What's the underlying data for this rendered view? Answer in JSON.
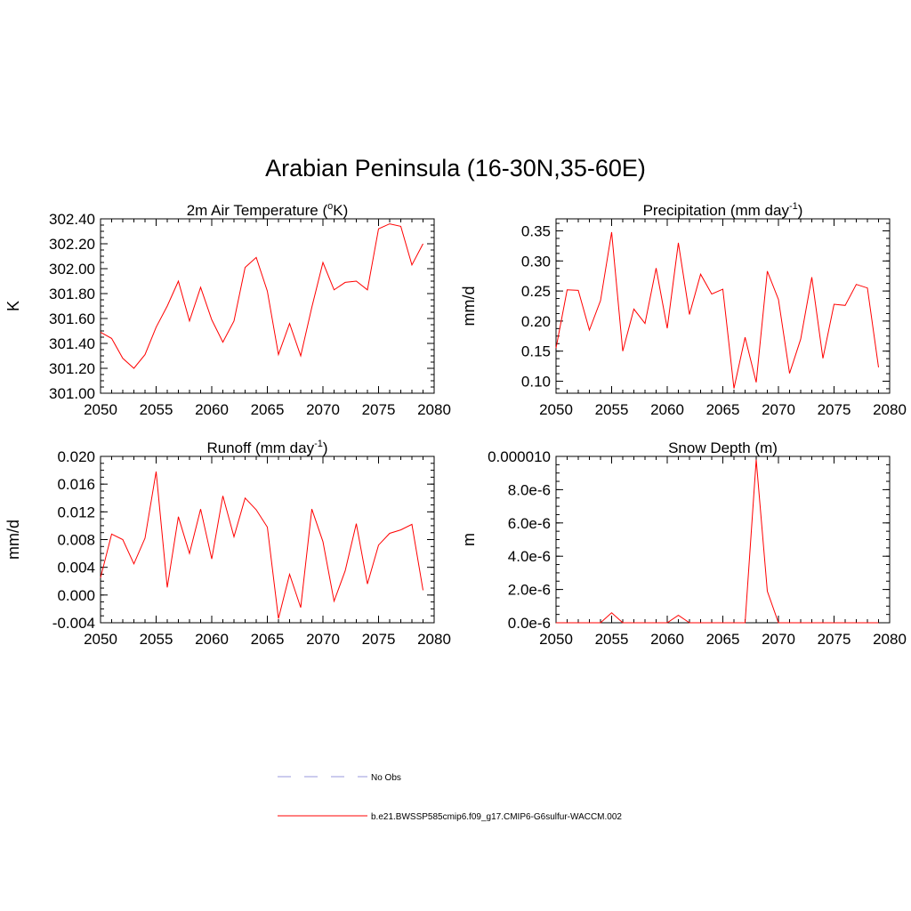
{
  "title": "Arabian Peninsula (16-30N,35-60E)",
  "legend": [
    {
      "label": "No Obs",
      "color": "#9999dd",
      "style": "dashed"
    },
    {
      "label": "b.e21.BWSSP585cmip6.f09_g17.CMIP6-G6sulfur-WACCM.002",
      "color": "#ff0000",
      "style": "solid"
    }
  ],
  "chart_data": [
    {
      "type": "line",
      "title": "2m Air Temperature (oK)",
      "title_parts": {
        "pre": "2m Air Temperature (",
        "sup": "o",
        "post": "K)"
      },
      "ylabel": "K",
      "xlim": [
        2050,
        2080
      ],
      "ylim": [
        301.0,
        302.4
      ],
      "xticks": [
        "2050",
        "2055",
        "2060",
        "2065",
        "2070",
        "2075",
        "2080"
      ],
      "yticks": [
        "301.00",
        "301.20",
        "301.40",
        "301.60",
        "301.80",
        "302.00",
        "302.20",
        "302.40"
      ],
      "ytick_values": [
        301.0,
        301.2,
        301.4,
        301.6,
        301.8,
        302.0,
        302.2,
        302.4
      ],
      "x": [
        2050,
        2051,
        2052,
        2053,
        2054,
        2055,
        2056,
        2057,
        2058,
        2059,
        2060,
        2061,
        2062,
        2063,
        2064,
        2065,
        2066,
        2067,
        2068,
        2069,
        2070,
        2071,
        2072,
        2073,
        2074,
        2075,
        2076,
        2077,
        2078,
        2079
      ],
      "series": [
        {
          "color": "#ff0000",
          "values": [
            301.49,
            301.44,
            301.28,
            301.2,
            301.31,
            301.53,
            301.7,
            301.9,
            301.58,
            301.85,
            301.59,
            301.41,
            301.58,
            302.01,
            302.09,
            301.82,
            301.31,
            301.56,
            301.3,
            301.69,
            302.05,
            301.83,
            301.89,
            301.9,
            301.83,
            302.32,
            302.36,
            302.34,
            302.03,
            302.2
          ]
        }
      ]
    },
    {
      "type": "line",
      "title": "Precipitation (mm day-1)",
      "title_parts": {
        "pre": "Precipitation (mm day",
        "sup": "-1",
        "post": ")"
      },
      "ylabel": "mm/d",
      "xlim": [
        2050,
        2080
      ],
      "ylim": [
        0.08,
        0.37
      ],
      "xticks": [
        "2050",
        "2055",
        "2060",
        "2065",
        "2070",
        "2075",
        "2080"
      ],
      "yticks": [
        "0.10",
        "0.15",
        "0.20",
        "0.25",
        "0.30",
        "0.35"
      ],
      "ytick_values": [
        0.1,
        0.15,
        0.2,
        0.25,
        0.3,
        0.35
      ],
      "x": [
        2050,
        2051,
        2052,
        2053,
        2054,
        2055,
        2056,
        2057,
        2058,
        2059,
        2060,
        2061,
        2062,
        2063,
        2064,
        2065,
        2066,
        2067,
        2068,
        2069,
        2070,
        2071,
        2072,
        2073,
        2074,
        2075,
        2076,
        2077,
        2078,
        2079
      ],
      "series": [
        {
          "color": "#ff0000",
          "values": [
            0.155,
            0.252,
            0.251,
            0.185,
            0.234,
            0.348,
            0.15,
            0.22,
            0.196,
            0.288,
            0.188,
            0.33,
            0.211,
            0.278,
            0.245,
            0.253,
            0.088,
            0.173,
            0.098,
            0.283,
            0.236,
            0.113,
            0.17,
            0.273,
            0.138,
            0.228,
            0.226,
            0.261,
            0.255,
            0.123
          ]
        }
      ]
    },
    {
      "type": "line",
      "title": "Runoff (mm day-1)",
      "title_parts": {
        "pre": "Runoff (mm day",
        "sup": "-1",
        "post": ")"
      },
      "ylabel": "mm/d",
      "xlim": [
        2050,
        2080
      ],
      "ylim": [
        -0.004,
        0.02
      ],
      "xticks": [
        "2050",
        "2055",
        "2060",
        "2065",
        "2070",
        "2075",
        "2080"
      ],
      "yticks": [
        "-0.004",
        "0.000",
        "0.004",
        "0.008",
        "0.012",
        "0.016",
        "0.020"
      ],
      "ytick_values": [
        -0.004,
        0.0,
        0.004,
        0.008,
        0.012,
        0.016,
        0.02
      ],
      "x": [
        2050,
        2051,
        2052,
        2053,
        2054,
        2055,
        2056,
        2057,
        2058,
        2059,
        2060,
        2061,
        2062,
        2063,
        2064,
        2065,
        2066,
        2067,
        2068,
        2069,
        2070,
        2071,
        2072,
        2073,
        2074,
        2075,
        2076,
        2077,
        2078,
        2079
      ],
      "series": [
        {
          "color": "#ff0000",
          "values": [
            0.0025,
            0.0088,
            0.008,
            0.0045,
            0.0082,
            0.0178,
            0.0011,
            0.0113,
            0.006,
            0.0124,
            0.0052,
            0.0143,
            0.0084,
            0.014,
            0.0123,
            0.0098,
            -0.0034,
            0.003,
            -0.0018,
            0.0124,
            0.0077,
            -0.0009,
            0.0035,
            0.0103,
            0.0016,
            0.0072,
            0.0089,
            0.0094,
            0.0102,
            0.0007
          ]
        }
      ]
    },
    {
      "type": "line",
      "title": "Snow Depth (m)",
      "ylabel": "m",
      "xlim": [
        2050,
        2080
      ],
      "ylim": [
        0.0,
        1e-05
      ],
      "xticks": [
        "2050",
        "2055",
        "2060",
        "2065",
        "2070",
        "2075",
        "2080"
      ],
      "yticks": [
        "0.0e-6",
        "2.0e-6",
        "4.0e-6",
        "6.0e-6",
        "8.0e-6",
        "0.000010"
      ],
      "ytick_values": [
        0.0,
        2e-06,
        4e-06,
        6e-06,
        8e-06,
        1e-05
      ],
      "x": [
        2050,
        2051,
        2052,
        2053,
        2054,
        2055,
        2056,
        2057,
        2058,
        2059,
        2060,
        2061,
        2062,
        2063,
        2064,
        2065,
        2066,
        2067,
        2068,
        2069,
        2070,
        2071,
        2072,
        2073,
        2074,
        2075,
        2076,
        2077,
        2078,
        2079
      ],
      "series": [
        {
          "color": "#ff0000",
          "values": [
            0,
            0,
            0,
            0,
            0,
            6e-07,
            0,
            0,
            0,
            0,
            0,
            4.5e-07,
            0,
            0,
            0,
            0,
            0,
            0,
            9.8e-06,
            1.9e-06,
            0,
            0,
            0,
            0,
            0,
            0,
            0,
            0,
            0,
            0
          ]
        }
      ]
    }
  ]
}
